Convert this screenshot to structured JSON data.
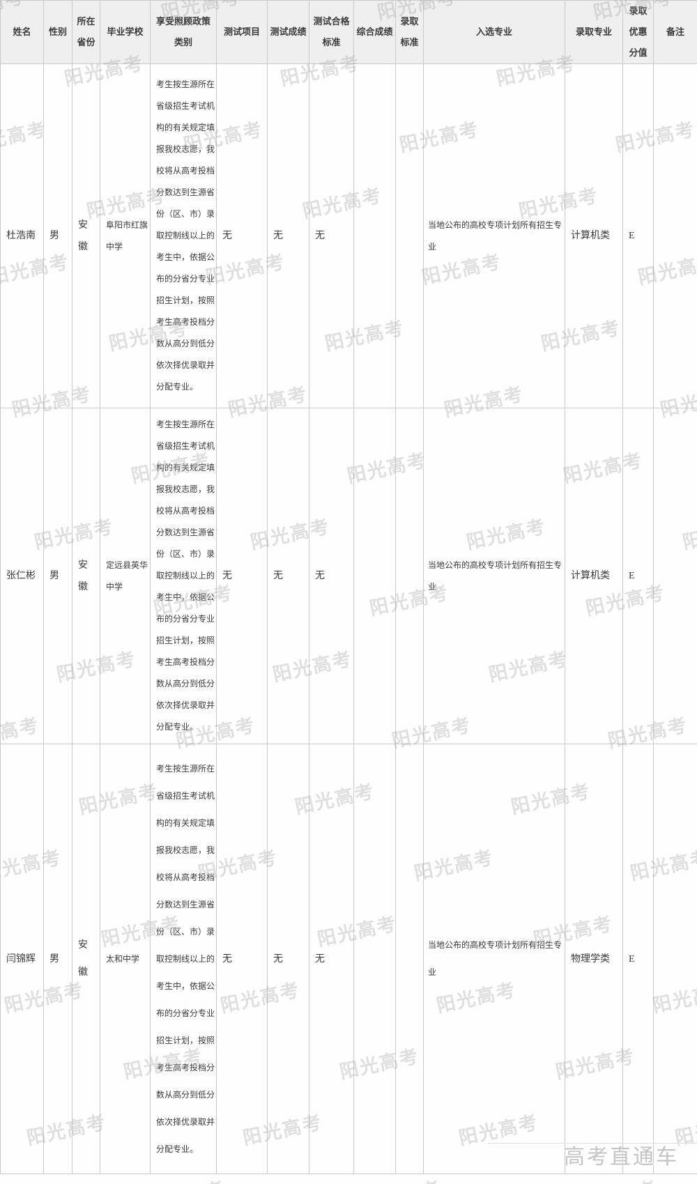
{
  "watermark": {
    "text": "阳光高考"
  },
  "footer": {
    "brand": "高考直通车"
  },
  "colors": {
    "border": "#c9c9c9",
    "header_bg": "#efefef",
    "text": "#3a3a3a",
    "watermark": "#9a9a9a",
    "footer": "#c4c4c4"
  },
  "table": {
    "headers": [
      "姓名",
      "性别",
      "所在省份",
      "毕业学校",
      "享受照顾政策类别",
      "测试项目",
      "测试成绩",
      "测试合格标准",
      "综合成绩",
      "录取标准",
      "入选专业",
      "录取专业",
      "录取优惠分值",
      "备注"
    ],
    "rows": [
      {
        "name": "杜浩南",
        "gender": "男",
        "province": "安徽",
        "school": "阜阳市红旗中学",
        "policy": "考生按生源所在省级招生考试机构的有关规定填报我校志愿，我校将从高考投档分数达到生源省份（区、市）录取控制线以上的考生中，依据公布的分省分专业招生计划，按照考生高考投档分数从高分到低分依次择优录取并分配专业。",
        "test_item": "无",
        "test_score": "无",
        "test_pass_standard": "无",
        "comprehensive_score": "",
        "admission_standard": "",
        "selected_major": "当地公布的高校专项计划所有招生专业",
        "admitted_major": "计算机类",
        "bonus_points": "E",
        "note": ""
      },
      {
        "name": "张仁彬",
        "gender": "男",
        "province": "安徽",
        "school": "定远县英华中学",
        "policy": "考生按生源所在省级招生考试机构的有关规定填报我校志愿，我校将从高考投档分数达到生源省份（区、市）录取控制线以上的考生中，依据公布的分省分专业招生计划，按照考生高考投档分数从高分到低分依次择优录取并分配专业。",
        "test_item": "无",
        "test_score": "无",
        "test_pass_standard": "无",
        "comprehensive_score": "",
        "admission_standard": "",
        "selected_major": "当地公布的高校专项计划所有招生专业",
        "admitted_major": "计算机类",
        "bonus_points": "E",
        "note": ""
      },
      {
        "name": "闫锦辉",
        "gender": "男",
        "province": "安徽",
        "school": "太和中学",
        "policy": "考生按生源所在省级招生考试机构的有关规定填报我校志愿，我校将从高考投档分数达到生源省份（区、市）录取控制线以上的考生中，依据公布的分省分专业招生计划，按照考生高考投档分数从高分到低分依次择优录取并分配专业。",
        "test_item": "无",
        "test_score": "无",
        "test_pass_standard": "无",
        "comprehensive_score": "",
        "admission_standard": "",
        "selected_major": "当地公布的高校专项计划所有招生专业",
        "admitted_major": "物理学类",
        "bonus_points": "E",
        "note": ""
      }
    ]
  }
}
